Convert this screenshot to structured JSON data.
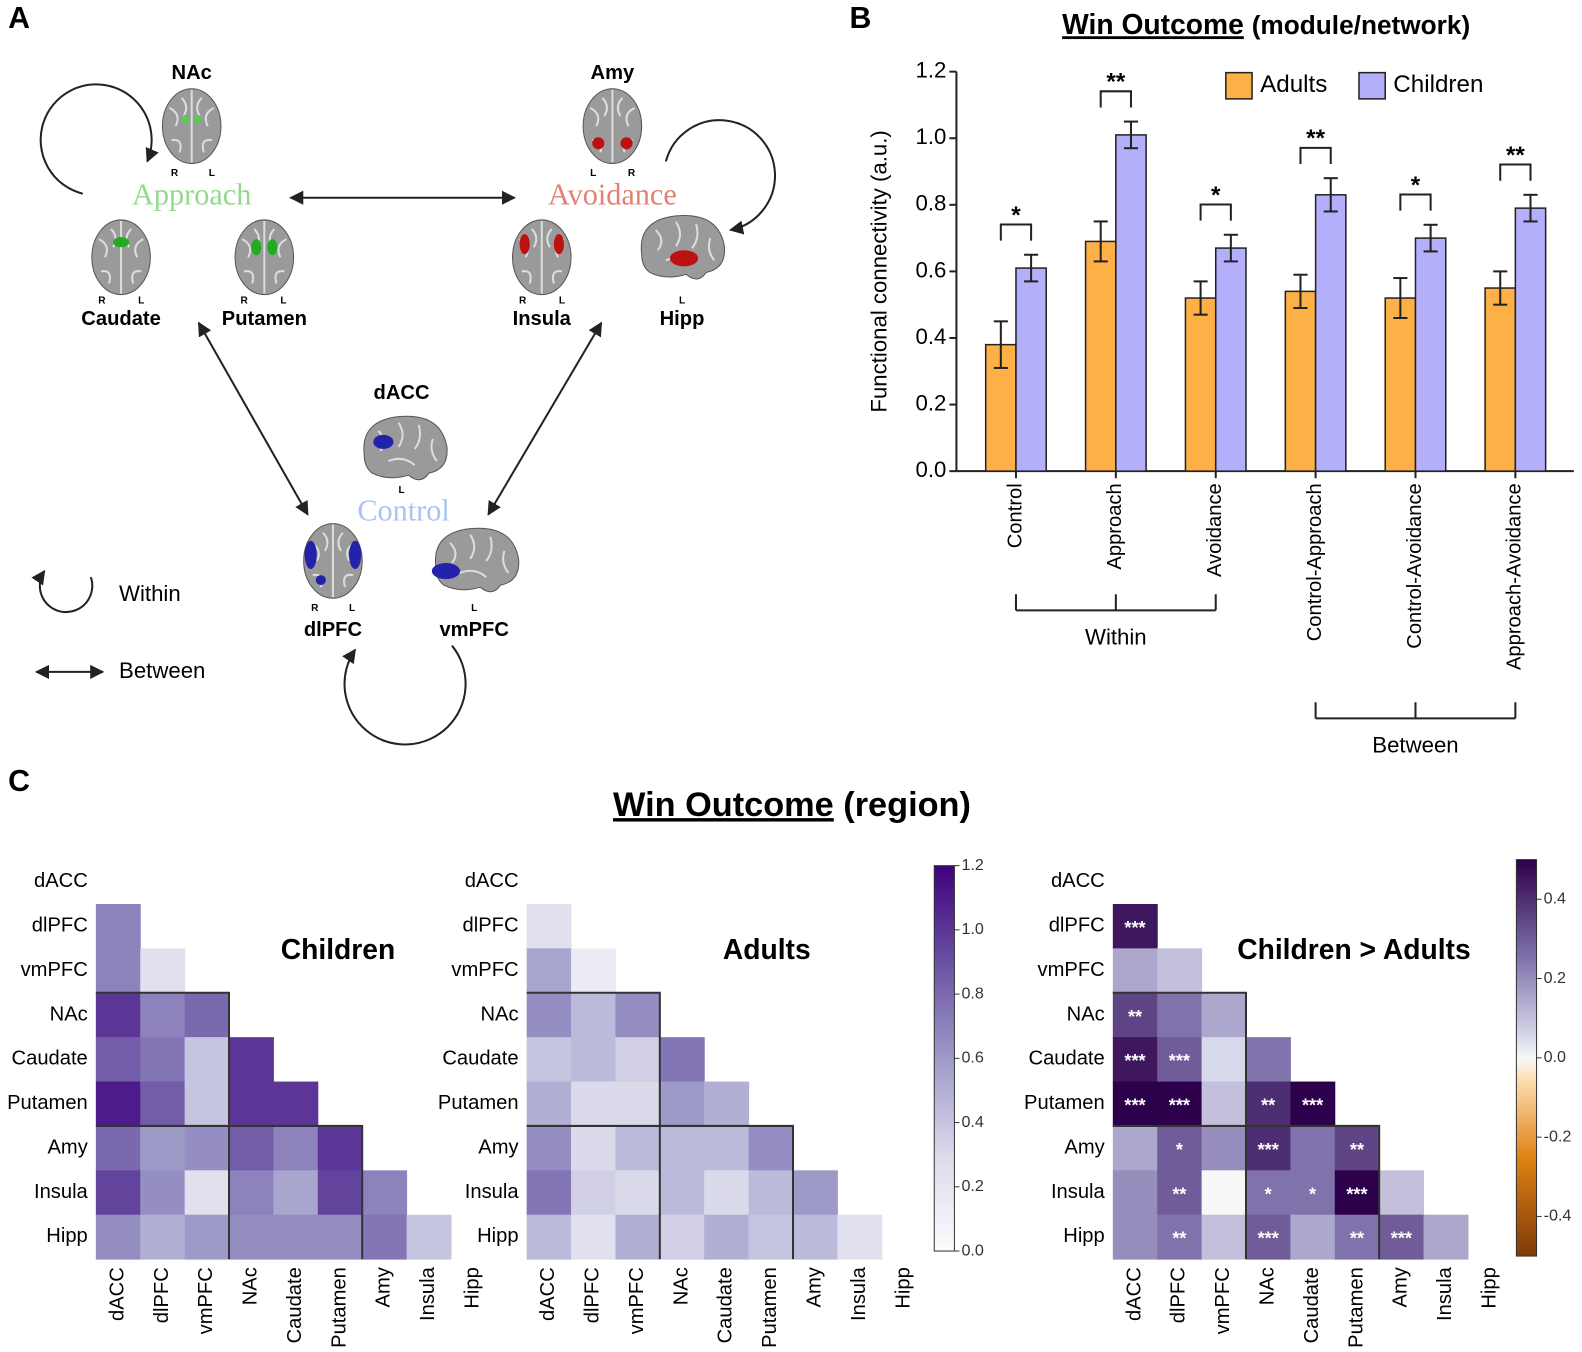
{
  "panel_a": {
    "label": "A",
    "modules": [
      "Approach",
      "Avoidance",
      "Control"
    ],
    "regions": [
      {
        "name": "NAc",
        "orientation": [
          "R",
          "L"
        ]
      },
      {
        "name": "Caudate",
        "orientation": [
          "R",
          "L"
        ]
      },
      {
        "name": "Putamen",
        "orientation": [
          "R",
          "L"
        ]
      },
      {
        "name": "Amy",
        "orientation": [
          "L",
          "R"
        ]
      },
      {
        "name": "Insula",
        "orientation": [
          "R",
          "L"
        ]
      },
      {
        "name": "Hipp",
        "orientation": [
          "L"
        ]
      },
      {
        "name": "dACC",
        "orientation": [
          "L"
        ]
      },
      {
        "name": "dlPFC",
        "orientation": [
          "R",
          "L"
        ]
      },
      {
        "name": "vmPFC",
        "orientation": [
          "L"
        ]
      }
    ],
    "legend": [
      "Within",
      "Between"
    ]
  },
  "panel_b": {
    "label": "B"
  },
  "panel_c": {
    "label": "C",
    "title": "Win Outcome",
    "subtitle": "(region)"
  },
  "chart_data": [
    {
      "type": "bar",
      "title": "Win Outcome",
      "subtitle": "(module/network)",
      "ylabel": "Functional connectivity (a.u.)",
      "categories": [
        "Control",
        "Approach",
        "Avoidance",
        "Control-Approach",
        "Control-Avoidance",
        "Approach-Avoidance"
      ],
      "series": [
        {
          "name": "Adults",
          "color": "#fdb045",
          "values": [
            0.38,
            0.69,
            0.52,
            0.54,
            0.52,
            0.55
          ],
          "errors": [
            0.07,
            0.06,
            0.05,
            0.05,
            0.06,
            0.05
          ]
        },
        {
          "name": "Children",
          "color": "#b3affa",
          "values": [
            0.61,
            1.01,
            0.67,
            0.83,
            0.7,
            0.79
          ],
          "errors": [
            0.04,
            0.04,
            0.04,
            0.05,
            0.04,
            0.04
          ]
        }
      ],
      "significance": [
        "*",
        "**",
        "*",
        "**",
        "*",
        "**"
      ],
      "groups": [
        {
          "label": "Within",
          "members": [
            "Control",
            "Approach",
            "Avoidance"
          ]
        },
        {
          "label": "Between",
          "members": [
            "Control-Approach",
            "Control-Avoidance",
            "Approach-Avoidance"
          ]
        }
      ],
      "ylim": [
        0,
        1.2
      ],
      "yticks": [
        {
          "value": 0,
          "label": "0.0"
        },
        0.2,
        0.4,
        0.6,
        0.8,
        {
          "value": 1,
          "label": "1.0"
        },
        1.2
      ],
      "legend": "upper right"
    },
    {
      "type": "heatmap",
      "title": "Children",
      "colormap": "Purples",
      "zlim": [
        0,
        1.2
      ],
      "rows": [
        "dACC",
        "dlPFC",
        "vmPFC",
        "NAc",
        "Caudate",
        "Putamen",
        "Amy",
        "Insula",
        "Hipp"
      ],
      "columns": [
        "dACC",
        "dlPFC",
        "vmPFC",
        "NAc",
        "Caudate",
        "Putamen",
        "Amy",
        "Insula",
        "Hipp"
      ],
      "values": [
        [],
        [
          0.7
        ],
        [
          0.7,
          0.25
        ],
        [
          1.0,
          0.7,
          0.8
        ],
        [
          0.85,
          0.75,
          0.4,
          1.0
        ],
        [
          1.1,
          0.85,
          0.4,
          1.0,
          1.0
        ],
        [
          0.8,
          0.6,
          0.65,
          0.85,
          0.7,
          1.0
        ],
        [
          0.95,
          0.65,
          0.25,
          0.7,
          0.55,
          0.95,
          0.7
        ],
        [
          0.65,
          0.5,
          0.6,
          0.65,
          0.65,
          0.65,
          0.75,
          0.4
        ]
      ]
    },
    {
      "type": "heatmap",
      "title": "Adults",
      "colormap": "Purples",
      "zlim": [
        0,
        1.2
      ],
      "zticks": [
        {
          "value": 0,
          "label": "0.0"
        },
        0.2,
        0.4,
        0.6,
        0.8,
        {
          "value": 1,
          "label": "1.0"
        },
        1.2
      ],
      "rows": [
        "dACC",
        "dlPFC",
        "vmPFC",
        "NAc",
        "Caudate",
        "Putamen",
        "Amy",
        "Insula",
        "Hipp"
      ],
      "columns": [
        "dACC",
        "dlPFC",
        "vmPFC",
        "NAc",
        "Caudate",
        "Putamen",
        "Amy",
        "Insula",
        "Hipp"
      ],
      "values": [
        [],
        [
          0.25
        ],
        [
          0.55,
          0.15
        ],
        [
          0.65,
          0.45,
          0.65
        ],
        [
          0.4,
          0.45,
          0.35,
          0.75
        ],
        [
          0.5,
          0.3,
          0.3,
          0.6,
          0.5
        ],
        [
          0.65,
          0.3,
          0.45,
          0.45,
          0.45,
          0.65
        ],
        [
          0.75,
          0.35,
          0.3,
          0.45,
          0.3,
          0.45,
          0.6
        ],
        [
          0.45,
          0.25,
          0.5,
          0.35,
          0.5,
          0.4,
          0.45,
          0.25
        ]
      ]
    },
    {
      "type": "heatmap",
      "title": "Children > Adults",
      "colormap": "PuOr",
      "zlim": [
        -0.5,
        0.5
      ],
      "zticks": [
        -0.4,
        -0.2,
        {
          "value": 0,
          "label": "0.0"
        },
        0.2,
        0.4
      ],
      "rows": [
        "dACC",
        "dlPFC",
        "vmPFC",
        "NAc",
        "Caudate",
        "Putamen",
        "Amy",
        "Insula",
        "Hipp"
      ],
      "columns": [
        "dACC",
        "dlPFC",
        "vmPFC",
        "NAc",
        "Caudate",
        "Putamen",
        "Amy",
        "Insula",
        "Hipp"
      ],
      "values": [
        [],
        [
          0.45
        ],
        [
          0.15,
          0.1
        ],
        [
          0.35,
          0.25,
          0.15
        ],
        [
          0.45,
          0.3,
          0.05,
          0.25
        ],
        [
          0.6,
          0.55,
          0.1,
          0.4,
          0.5
        ],
        [
          0.15,
          0.3,
          0.2,
          0.4,
          0.25,
          0.35
        ],
        [
          0.2,
          0.3,
          0.0,
          0.25,
          0.25,
          0.5,
          0.1
        ],
        [
          0.2,
          0.25,
          0.1,
          0.3,
          0.15,
          0.25,
          0.3,
          0.15
        ]
      ],
      "annotations": [
        [],
        [
          "***"
        ],
        [
          null,
          null
        ],
        [
          "**",
          null,
          null
        ],
        [
          "***",
          "***",
          null,
          null
        ],
        [
          "***",
          "***",
          null,
          "**",
          "***"
        ],
        [
          null,
          "*",
          null,
          "***",
          null,
          "**"
        ],
        [
          null,
          "**",
          null,
          "*",
          "*",
          "***",
          null
        ],
        [
          null,
          "**",
          null,
          "***",
          null,
          "**",
          "***",
          null
        ]
      ]
    }
  ]
}
